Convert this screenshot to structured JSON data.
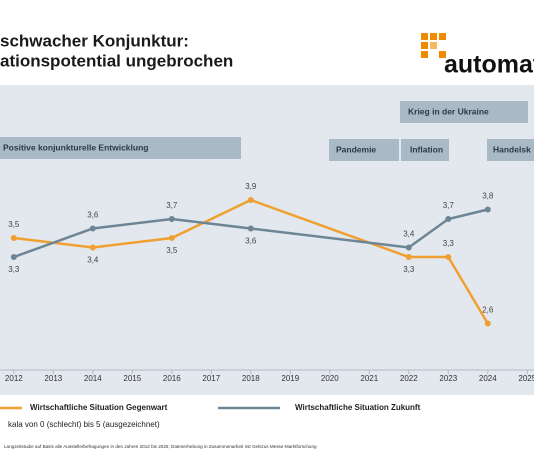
{
  "header": {
    "title_lines": [
      "schwacher Konjunktur:",
      "ationspotential ungebrochen"
    ],
    "logo": "automat"
  },
  "chart_data": {
    "type": "line",
    "x": [
      2012,
      2014,
      2016,
      2018,
      2022,
      2023,
      2024
    ],
    "series": [
      {
        "name": "Wirtschaftliche Situation Gegenwart",
        "color": "#f0a030",
        "values": [
          3.5,
          3.4,
          3.5,
          3.9,
          3.3,
          3.3,
          2.6
        ],
        "value_labels": [
          "3,5",
          "3,4",
          "3,5",
          "3,9",
          "3,3",
          "3,3",
          "2,6"
        ]
      },
      {
        "name": "Wirtschaftliche Situation Zukunft",
        "color": "#6e8596",
        "values": [
          3.3,
          3.6,
          3.7,
          3.6,
          3.4,
          3.7,
          3.8
        ],
        "value_labels": [
          "3,3",
          "3,6",
          "3,7",
          "3,6",
          "3,4",
          "3,7",
          "3,8"
        ]
      }
    ],
    "xlim": [
      2011.65,
      2025.17
    ],
    "xticks": [
      2012,
      2013,
      2014,
      2015,
      2016,
      2017,
      2018,
      2019,
      2020,
      2021,
      2022,
      2023,
      2024,
      2025
    ],
    "ylim": [
      2.2,
      4.2
    ],
    "annotations": [
      "Krieg in der Ukraine",
      "Positive konjunkturelle Entwicklung",
      "Pandemie",
      "Inflation",
      "Handelsk"
    ],
    "scale_note": "kala von 0 (schlecht) bis 5 (ausgezeichnet)",
    "footnote": "Langzeitstudie auf Basis alle Ausstellerbefragungen in den Jahren 2012 bis 2025; Datenerhebung in Zusammenarbeit mit Gelszus Messe-Marktforschung"
  }
}
